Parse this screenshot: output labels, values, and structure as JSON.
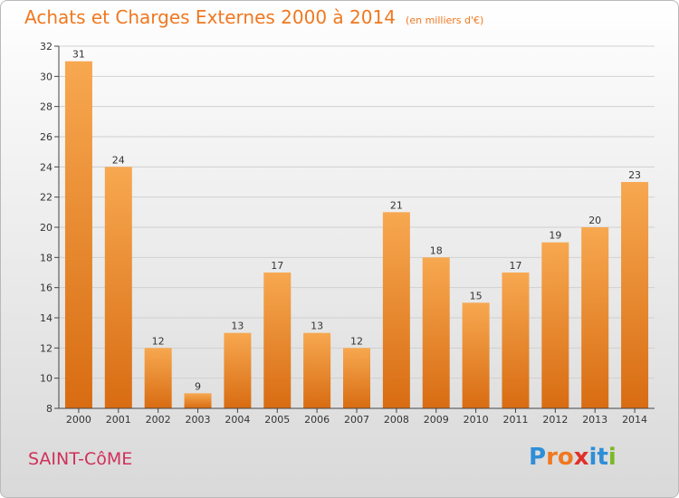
{
  "header": {
    "title": "Achats et Charges Externes 2000 à 2014",
    "subtitle": "(en milliers d'€)"
  },
  "footer": {
    "commune": "SAINT-CôME",
    "logo_text": "Proxiti",
    "logo_colors": [
      "#2e8ed8",
      "#f07820",
      "#f07820",
      "#e0302a",
      "#2e8ed8",
      "#2e8ed8",
      "#7ab828"
    ]
  },
  "colors": {
    "bar_top": "#f7a850",
    "bar_bottom": "#d86c12",
    "title": "#f07820",
    "commune": "#d0305a",
    "axis": "#444444",
    "grid": "#d0d0d0"
  },
  "chart_data": {
    "type": "bar",
    "title": "Achats et Charges Externes 2000 à 2014",
    "subtitle": "(en milliers d'€)",
    "categories": [
      "2000",
      "2001",
      "2002",
      "2003",
      "2004",
      "2005",
      "2006",
      "2007",
      "2008",
      "2009",
      "2010",
      "2011",
      "2012",
      "2013",
      "2014"
    ],
    "values": [
      31,
      24,
      12,
      9,
      13,
      17,
      13,
      12,
      21,
      18,
      15,
      17,
      19,
      20,
      23
    ],
    "ylim": [
      8,
      32
    ],
    "yticks": [
      8,
      10,
      12,
      14,
      16,
      18,
      20,
      22,
      24,
      26,
      28,
      30,
      32
    ],
    "xlabel": "",
    "ylabel": "",
    "grid": true,
    "data_labels": true
  }
}
